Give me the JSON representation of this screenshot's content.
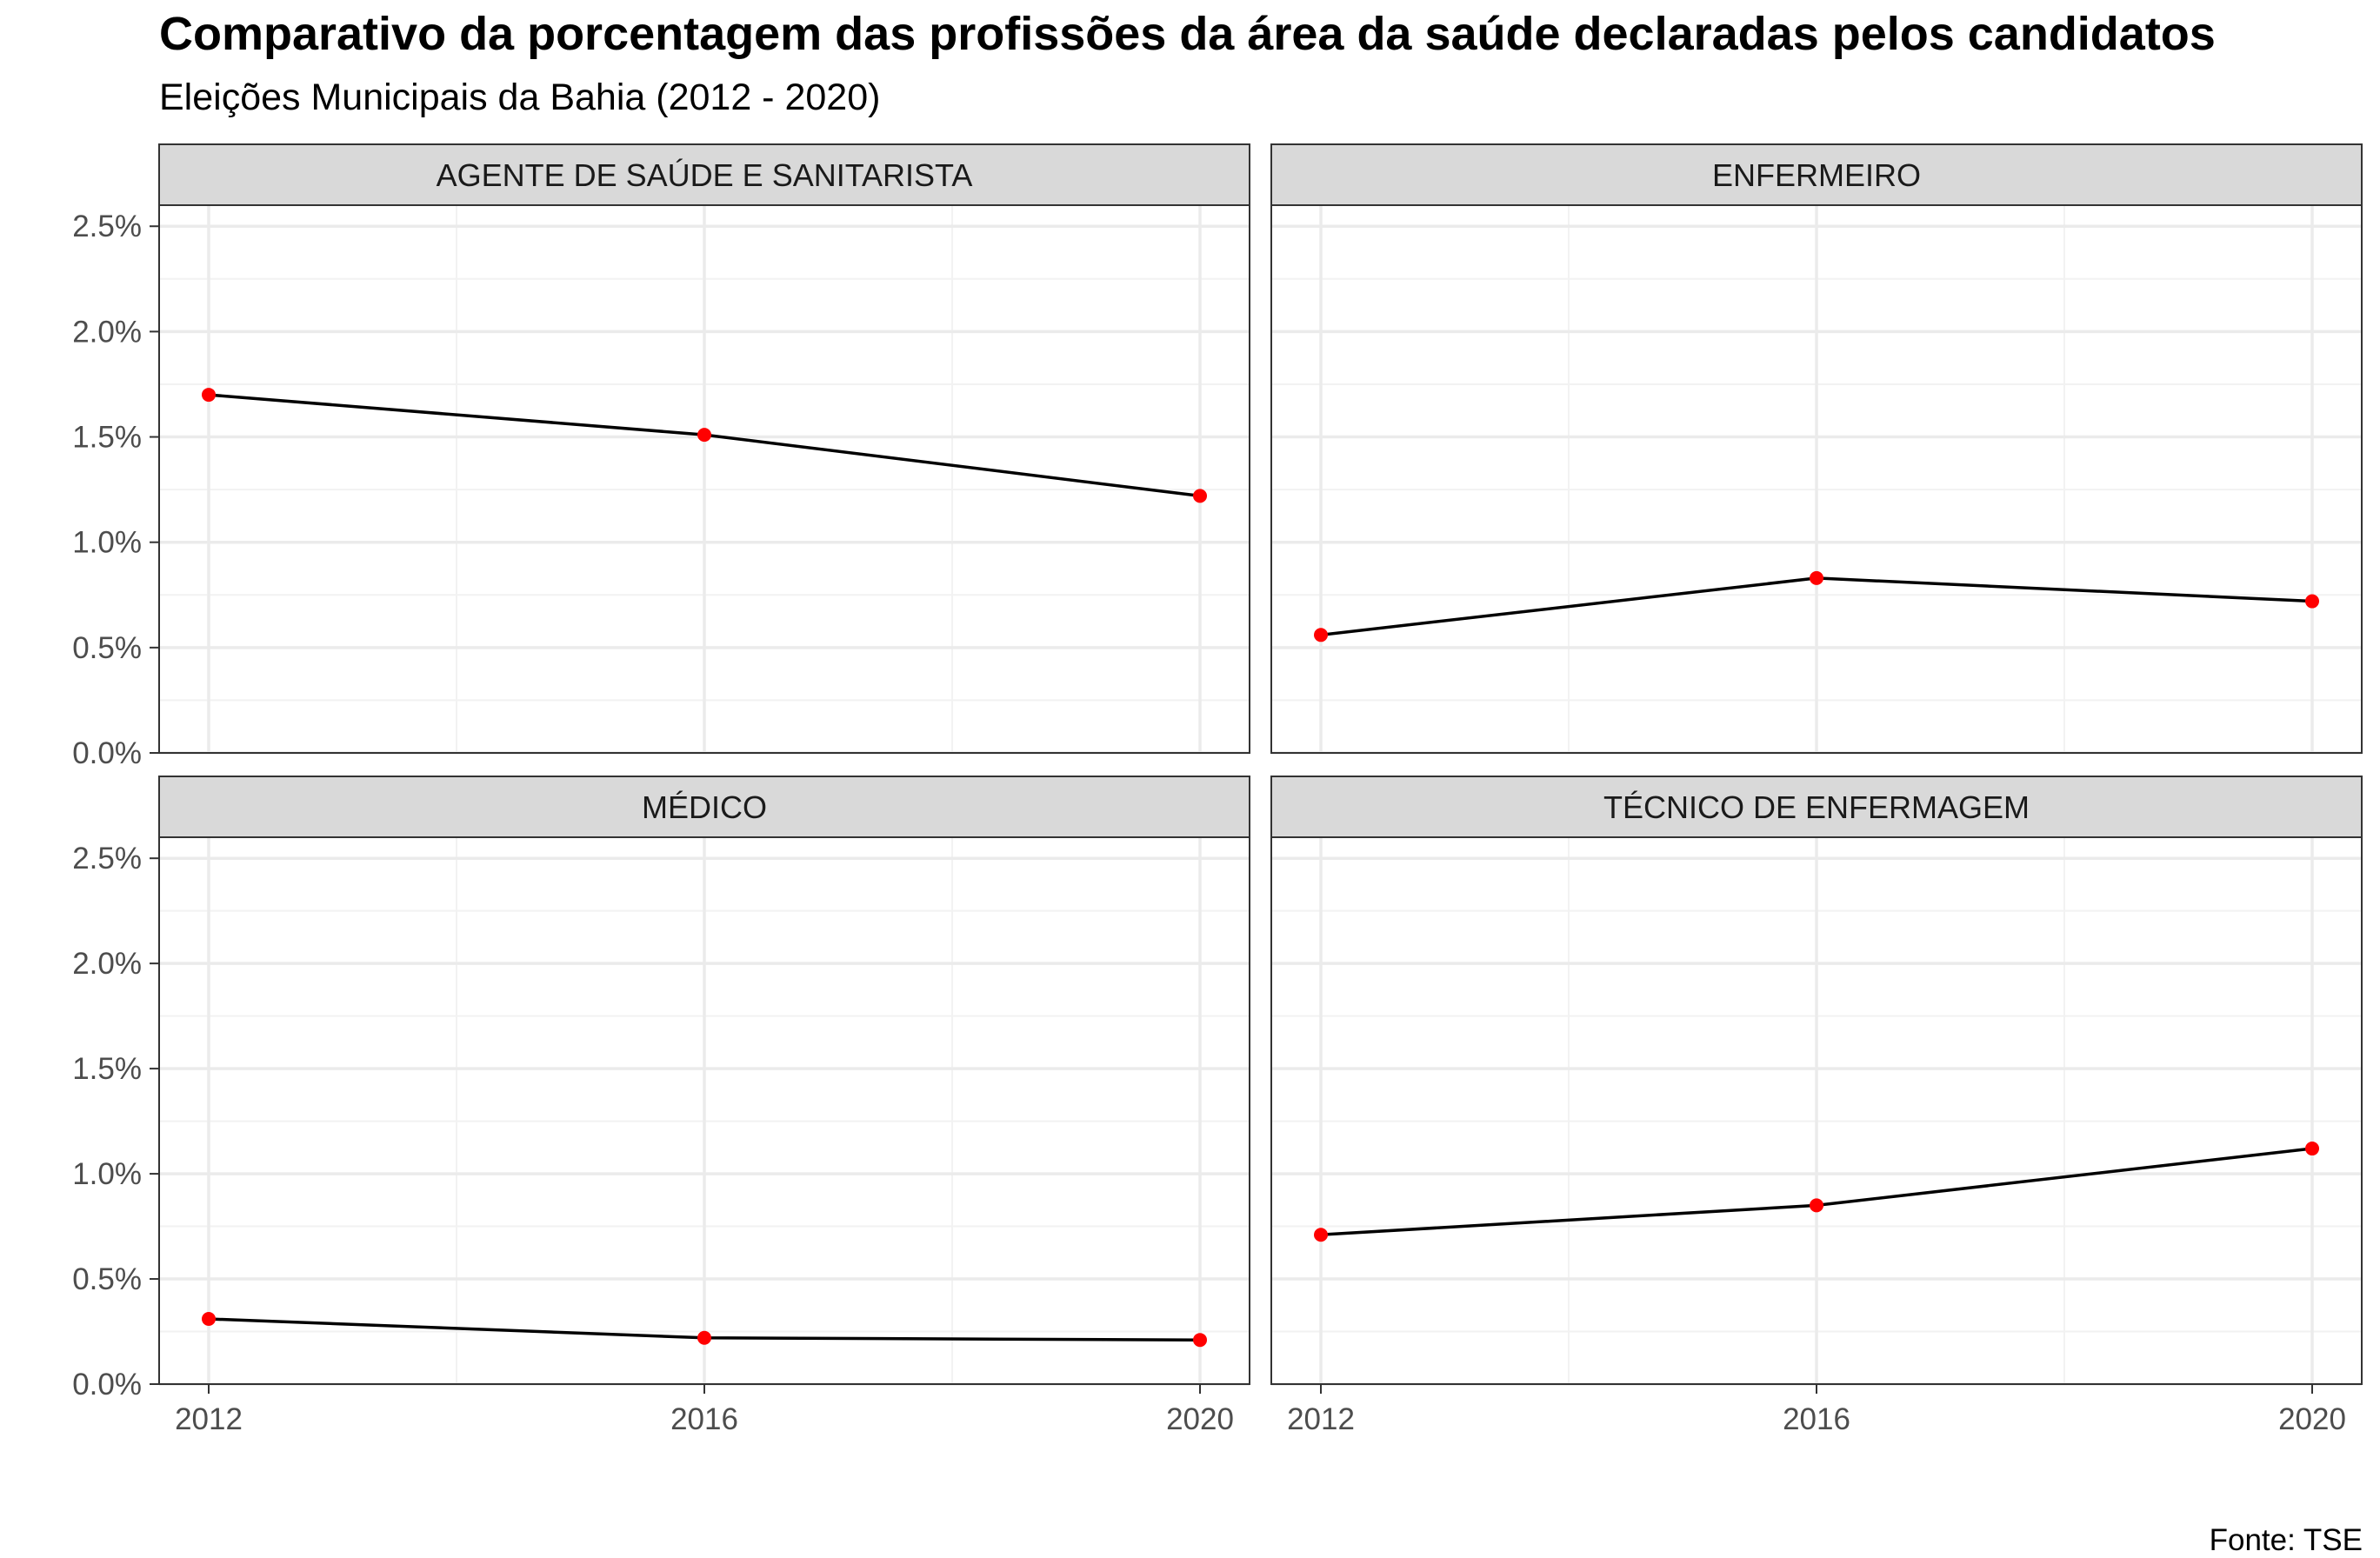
{
  "chart_data": {
    "type": "line",
    "title": "Comparativo da porcentagem das profissões da área da saúde declaradas pelos candidatos",
    "subtitle": "Eleições Municipais da Bahia (2012 - 2020)",
    "caption": "Fonte: TSE",
    "x": [
      2012,
      2016,
      2020
    ],
    "x_tick_labels": [
      "2012",
      "2016",
      "2020"
    ],
    "y_tick_labels": [
      "0.0%",
      "0.5%",
      "1.0%",
      "1.5%",
      "2.0%",
      "2.5%"
    ],
    "ylim": [
      0,
      2.6
    ],
    "xlim": [
      2011.6,
      2020.4
    ],
    "grid": true,
    "line_color": "#000000",
    "point_color": "#ff0000",
    "strip_fill": "#d9d9d9",
    "panels": [
      {
        "facet": "AGENTE DE SAÚDE E SANITARISTA",
        "values": [
          1.7,
          1.51,
          1.22
        ]
      },
      {
        "facet": "ENFERMEIRO",
        "values": [
          0.56,
          0.83,
          0.72
        ]
      },
      {
        "facet": "MÉDICO",
        "values": [
          0.31,
          0.22,
          0.21
        ]
      },
      {
        "facet": "TÉCNICO DE ENFERMAGEM",
        "values": [
          0.71,
          0.85,
          1.12
        ]
      }
    ]
  }
}
